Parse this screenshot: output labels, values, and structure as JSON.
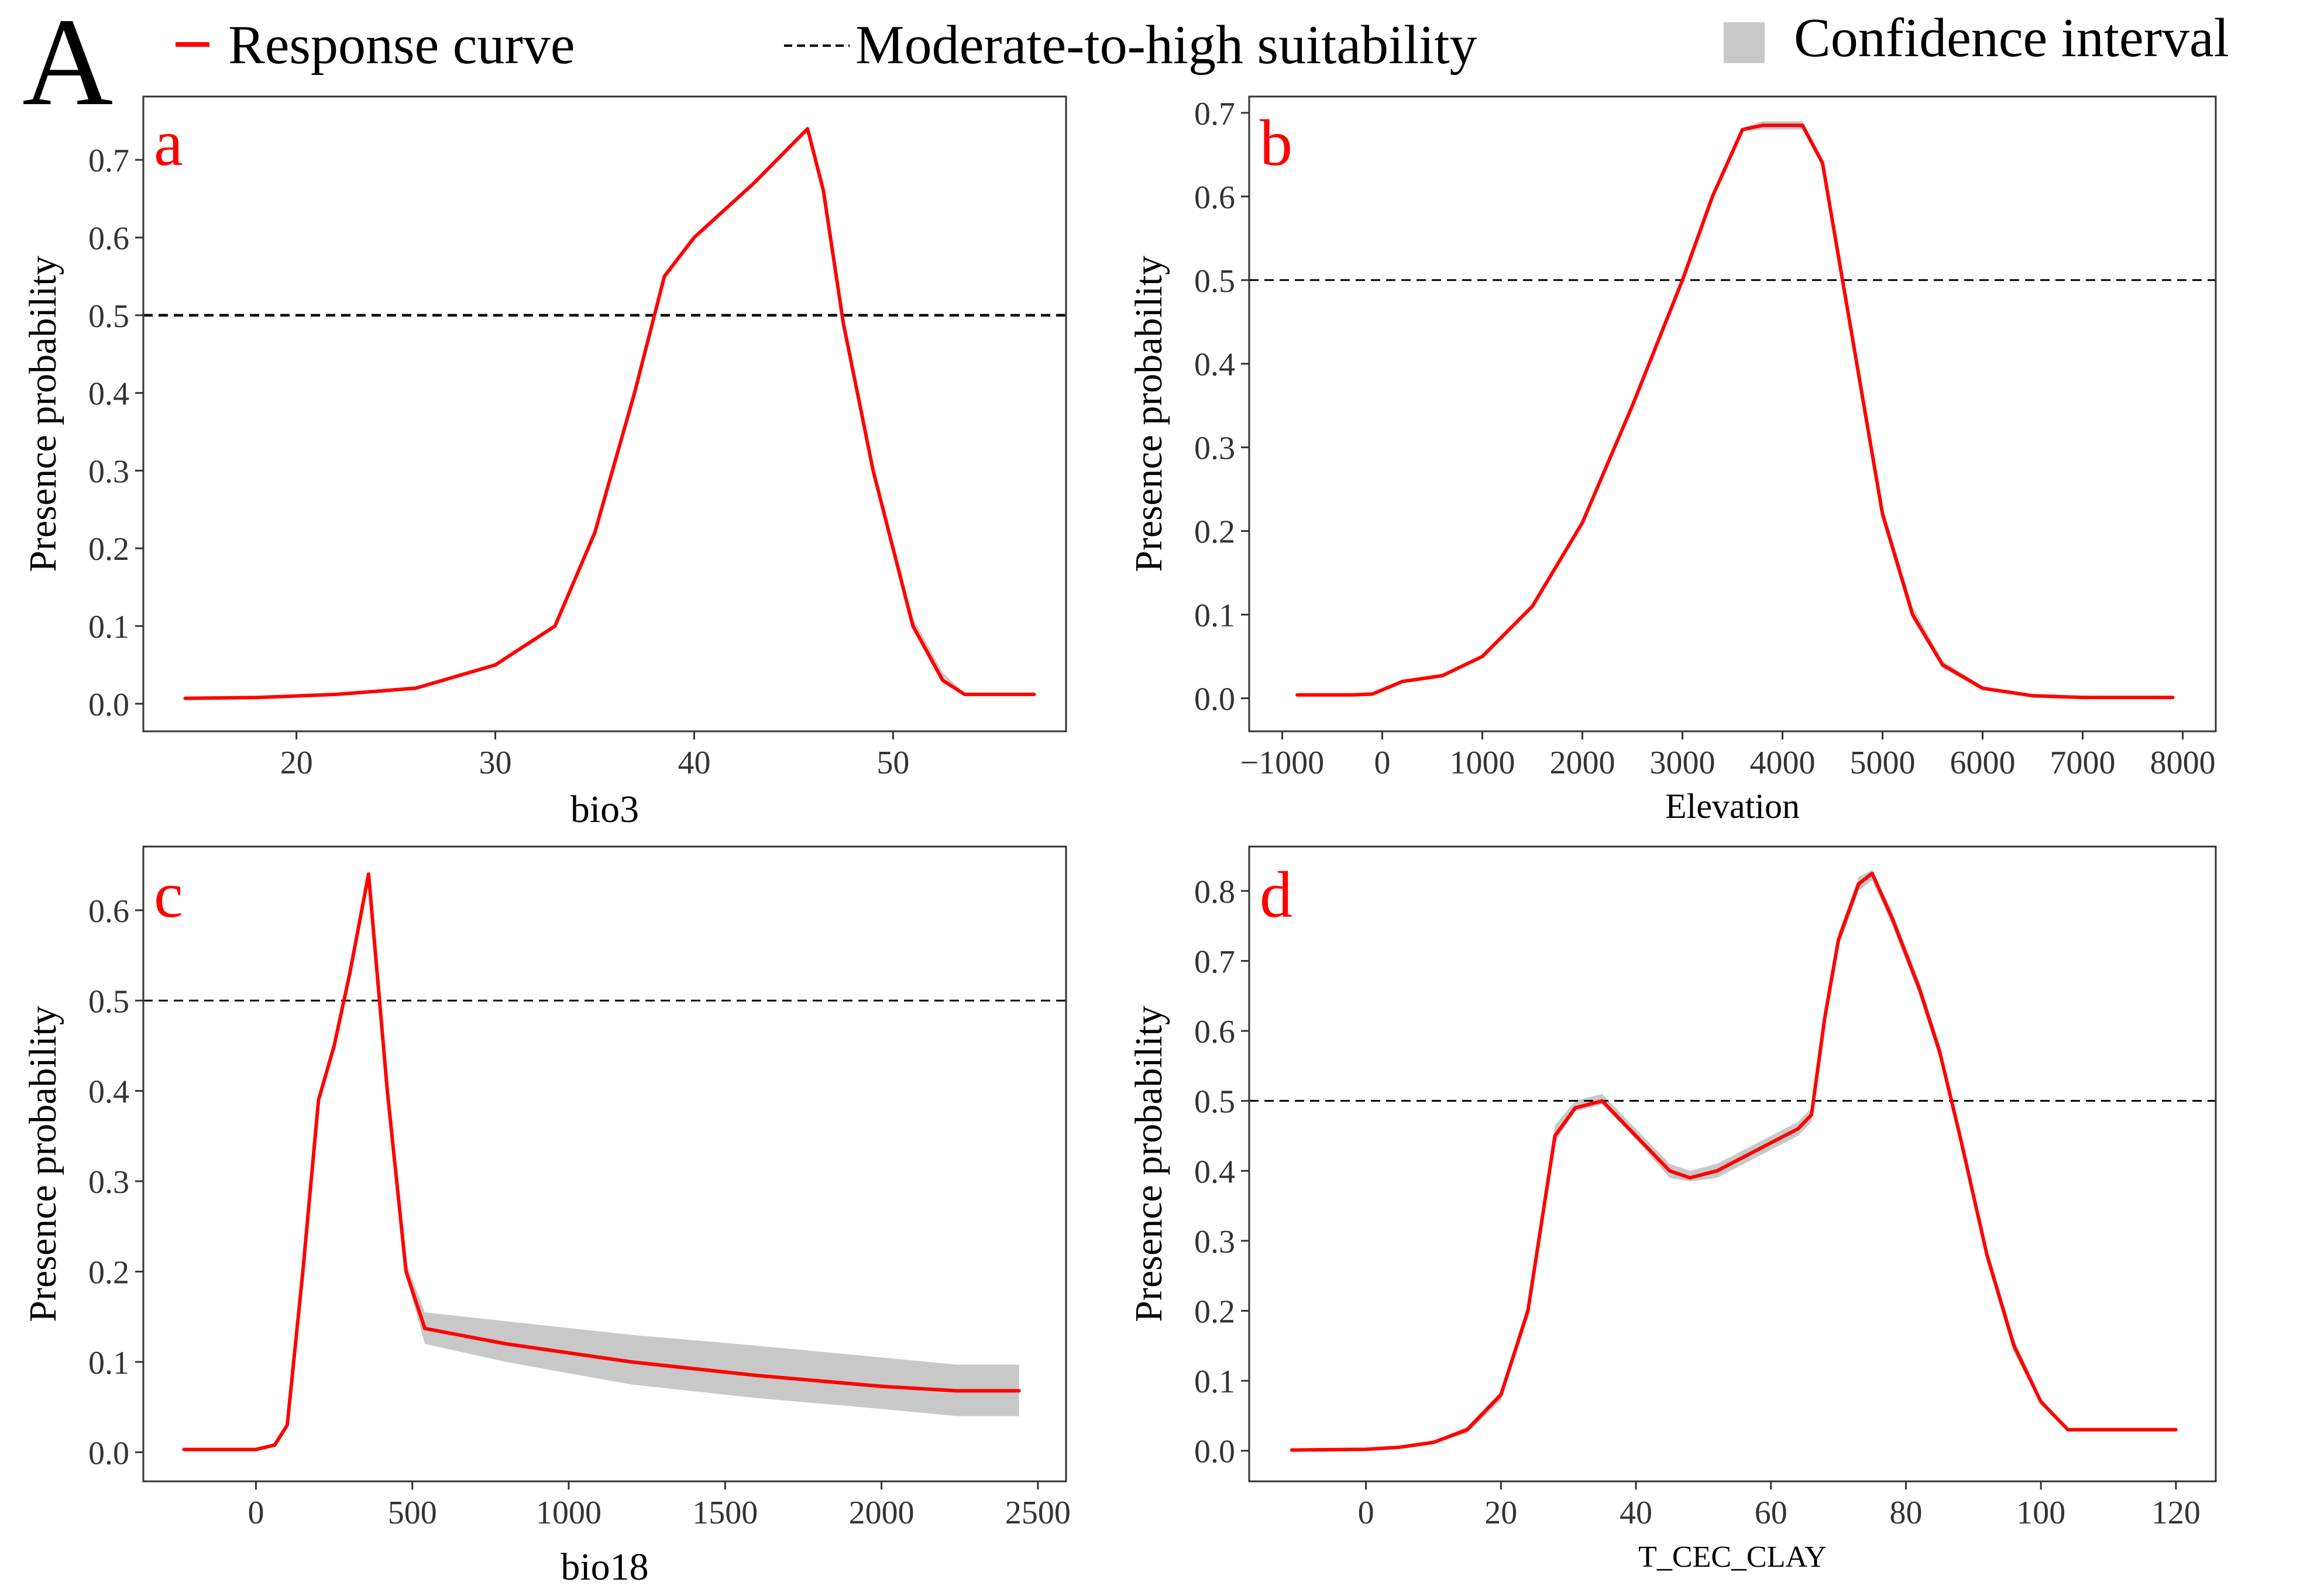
{
  "figure_label": "A",
  "legend": {
    "response": "Response curve",
    "threshold": "Moderate-to-high suitability",
    "ci": "Confidence interval"
  },
  "colors": {
    "response": "#ff0000",
    "ci": "#c8c8c8",
    "threshold": "#000000",
    "axis": "#333333",
    "panel_letter": "#ff0000"
  },
  "chart_data": [
    {
      "type": "line",
      "panel": "a",
      "xlabel": "bio3",
      "ylabel": "Presence probability",
      "xlim": [
        12.3,
        58.7
      ],
      "ylim": [
        -0.0355,
        0.7815
      ],
      "xticks": [
        20,
        30,
        40,
        50
      ],
      "yticks": [
        0.0,
        0.1,
        0.2,
        0.3,
        0.4,
        0.5,
        0.6,
        0.7
      ],
      "threshold": 0.5,
      "series": [
        {
          "name": "Response curve",
          "x": [
            14.4,
            18,
            22,
            26,
            30,
            33,
            35,
            37,
            38.5,
            40,
            43,
            45.7,
            46.5,
            47.5,
            49,
            51,
            52.5,
            53.6,
            57.1
          ],
          "y": [
            0.007,
            0.008,
            0.012,
            0.02,
            0.05,
            0.1,
            0.22,
            0.4,
            0.55,
            0.6,
            0.67,
            0.74,
            0.66,
            0.49,
            0.3,
            0.1,
            0.03,
            0.012,
            0.012
          ],
          "upper": [
            0.007,
            0.008,
            0.012,
            0.02,
            0.05,
            0.1,
            0.22,
            0.4,
            0.55,
            0.6,
            0.67,
            0.74,
            0.66,
            0.49,
            0.3,
            0.11,
            0.04,
            0.013,
            0.013
          ],
          "lower": [
            0.007,
            0.008,
            0.012,
            0.02,
            0.05,
            0.1,
            0.22,
            0.4,
            0.55,
            0.6,
            0.67,
            0.74,
            0.66,
            0.49,
            0.3,
            0.095,
            0.028,
            0.011,
            0.011
          ]
        }
      ]
    },
    {
      "type": "line",
      "panel": "b",
      "xlabel": "Elevation",
      "ylabel": "Presence probability",
      "xlim": [
        -1330,
        8330
      ],
      "ylim": [
        -0.0395,
        0.7195
      ],
      "xticks": [
        -1000,
        0,
        1000,
        2000,
        3000,
        4000,
        5000,
        6000,
        7000,
        8000
      ],
      "yticks": [
        0.0,
        0.1,
        0.2,
        0.3,
        0.4,
        0.5,
        0.6,
        0.7
      ],
      "threshold": 0.5,
      "series": [
        {
          "name": "Response curve",
          "x": [
            -850,
            -300,
            -100,
            100,
            200,
            600,
            1000,
            1500,
            2000,
            2500,
            3000,
            3300,
            3600,
            3800,
            4200,
            4400,
            4600,
            4800,
            5000,
            5300,
            5600,
            6000,
            6500,
            7000,
            7900
          ],
          "y": [
            0.004,
            0.004,
            0.005,
            0.015,
            0.02,
            0.027,
            0.05,
            0.11,
            0.21,
            0.35,
            0.5,
            0.6,
            0.68,
            0.685,
            0.685,
            0.64,
            0.5,
            0.36,
            0.22,
            0.1,
            0.04,
            0.012,
            0.003,
            0.001,
            0.001
          ],
          "upper": [
            0.004,
            0.004,
            0.005,
            0.015,
            0.02,
            0.027,
            0.05,
            0.11,
            0.21,
            0.35,
            0.5,
            0.6,
            0.682,
            0.69,
            0.69,
            0.645,
            0.505,
            0.37,
            0.23,
            0.11,
            0.045,
            0.014,
            0.004,
            0.001,
            0.001
          ],
          "lower": [
            0.004,
            0.004,
            0.005,
            0.015,
            0.02,
            0.027,
            0.05,
            0.11,
            0.21,
            0.35,
            0.5,
            0.6,
            0.678,
            0.68,
            0.68,
            0.635,
            0.495,
            0.355,
            0.215,
            0.095,
            0.036,
            0.01,
            0.003,
            0.001,
            0.001
          ]
        }
      ]
    },
    {
      "type": "line",
      "panel": "c",
      "xlabel": "bio18",
      "ylabel": "Presence probability",
      "xlim": [
        -360,
        2590
      ],
      "ylim": [
        -0.0322,
        0.6705
      ],
      "xticks": [
        0,
        500,
        1000,
        1500,
        2000,
        2500
      ],
      "yticks": [
        0.0,
        0.1,
        0.2,
        0.3,
        0.4,
        0.5,
        0.6
      ],
      "threshold": 0.5,
      "series": [
        {
          "name": "Response curve",
          "x": [
            -230,
            0,
            60,
            100,
            150,
            200,
            250,
            300,
            360,
            420,
            480,
            540,
            800,
            1200,
            1600,
            2000,
            2240,
            2440
          ],
          "y": [
            0.003,
            0.003,
            0.008,
            0.03,
            0.2,
            0.39,
            0.45,
            0.53,
            0.64,
            0.4,
            0.2,
            0.137,
            0.12,
            0.1,
            0.085,
            0.073,
            0.068,
            0.068
          ],
          "upper": [
            0.003,
            0.003,
            0.008,
            0.03,
            0.2,
            0.39,
            0.45,
            0.53,
            0.64,
            0.4,
            0.21,
            0.155,
            0.145,
            0.13,
            0.118,
            0.105,
            0.097,
            0.097
          ],
          "lower": [
            0.003,
            0.003,
            0.008,
            0.03,
            0.2,
            0.39,
            0.45,
            0.53,
            0.64,
            0.4,
            0.195,
            0.12,
            0.1,
            0.075,
            0.06,
            0.048,
            0.04,
            0.04
          ]
        }
      ]
    },
    {
      "type": "line",
      "panel": "d",
      "xlabel": "T_CEC_CLAY",
      "ylabel": "Presence probability",
      "xlim": [
        -17.3,
        125.9
      ],
      "ylim": [
        -0.0437,
        0.8634
      ],
      "xticks": [
        0,
        20,
        40,
        60,
        80,
        100,
        120
      ],
      "yticks": [
        0.0,
        0.1,
        0.2,
        0.3,
        0.4,
        0.5,
        0.6,
        0.7,
        0.8
      ],
      "threshold": 0.5,
      "series": [
        {
          "name": "Response curve",
          "x": [
            -11,
            0,
            5,
            10,
            15,
            20,
            24,
            28,
            31,
            35,
            40,
            45,
            48,
            52,
            56,
            60,
            64,
            66,
            68,
            70,
            73,
            75,
            78,
            82,
            85,
            88,
            92,
            96,
            100,
            104,
            109,
            120
          ],
          "y": [
            0.001,
            0.002,
            0.005,
            0.012,
            0.03,
            0.08,
            0.2,
            0.45,
            0.49,
            0.5,
            0.45,
            0.4,
            0.39,
            0.4,
            0.42,
            0.44,
            0.46,
            0.48,
            0.62,
            0.73,
            0.81,
            0.825,
            0.76,
            0.66,
            0.57,
            0.45,
            0.28,
            0.15,
            0.07,
            0.03,
            0.03,
            0.03
          ],
          "upper": [
            0.001,
            0.002,
            0.005,
            0.013,
            0.035,
            0.085,
            0.21,
            0.465,
            0.5,
            0.51,
            0.46,
            0.41,
            0.4,
            0.41,
            0.43,
            0.45,
            0.47,
            0.49,
            0.63,
            0.74,
            0.82,
            0.83,
            0.77,
            0.67,
            0.58,
            0.46,
            0.29,
            0.16,
            0.075,
            0.032,
            0.032,
            0.032
          ],
          "lower": [
            0.001,
            0.002,
            0.005,
            0.011,
            0.025,
            0.072,
            0.19,
            0.44,
            0.485,
            0.495,
            0.445,
            0.39,
            0.385,
            0.39,
            0.41,
            0.43,
            0.45,
            0.47,
            0.61,
            0.72,
            0.8,
            0.815,
            0.75,
            0.65,
            0.56,
            0.44,
            0.27,
            0.14,
            0.066,
            0.028,
            0.028,
            0.028
          ]
        }
      ]
    }
  ]
}
